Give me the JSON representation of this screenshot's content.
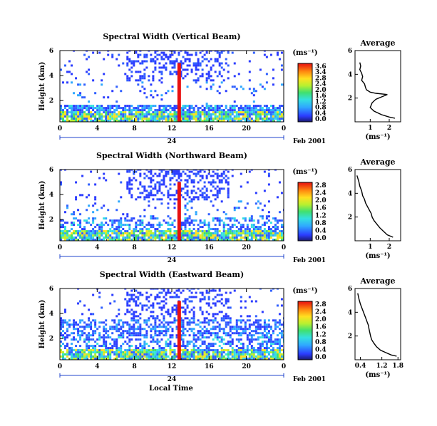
{
  "figure": {
    "xlabel": "Local Time",
    "date_label": "Feb 2001",
    "day_marker": "24",
    "unit_label": "(ms⁻¹)",
    "ylabel": "Height (km)",
    "avg_title": "Average"
  },
  "chart_data": [
    {
      "type": "heatmap",
      "title": "Spectral Width (Vertical Beam)",
      "ylabel": "Height (km)",
      "x_ticks": [
        "0",
        "4",
        "8",
        "12",
        "16",
        "20",
        "0"
      ],
      "y_ticks": [
        "6",
        "4",
        "2"
      ],
      "xlim": [
        0,
        24
      ],
      "ylim": [
        0.3,
        6
      ],
      "colorbar": {
        "ticks": [
          "3.6",
          "3.4",
          "2.8",
          "2.4",
          "2.0",
          "1.6",
          "1.2",
          "0.8",
          "0.4",
          "0.0"
        ],
        "range": [
          0,
          3.6
        ]
      },
      "average_profile": {
        "title": "Average",
        "xlabel": "(ms⁻¹)",
        "x_ticks": [
          "1",
          "2"
        ],
        "xlim": [
          0.2,
          2.6
        ],
        "y_ticks": [
          "6",
          "4",
          "2"
        ],
        "ylim": [
          0,
          6
        ],
        "width": [
          0.45,
          0.5,
          0.45,
          0.55,
          0.6,
          0.55,
          0.7,
          0.75,
          0.8,
          1.0,
          1.3,
          1.9,
          1.6,
          1.3,
          1.1,
          1.0,
          1.2,
          1.6,
          2.0,
          2.3
        ],
        "height": [
          5.0,
          4.7,
          4.4,
          4.1,
          3.8,
          3.5,
          3.2,
          2.9,
          2.7,
          2.5,
          2.4,
          2.3,
          2.1,
          1.9,
          1.6,
          1.2,
          0.9,
          0.6,
          0.4,
          0.3
        ]
      }
    },
    {
      "type": "heatmap",
      "title": "Spectral Width (Northward Beam)",
      "ylabel": "Height (km)",
      "x_ticks": [
        "0",
        "4",
        "8",
        "12",
        "16",
        "20",
        "0"
      ],
      "y_ticks": [
        "6",
        "4",
        "2"
      ],
      "xlim": [
        0,
        24
      ],
      "ylim": [
        0.3,
        6
      ],
      "colorbar": {
        "ticks": [
          "2.8",
          "2.4",
          "2.0",
          "1.6",
          "1.2",
          "0.8",
          "0.4",
          "0.0"
        ],
        "range": [
          0,
          2.8
        ]
      },
      "average_profile": {
        "title": "Average",
        "xlabel": "(ms⁻¹)",
        "x_ticks": [
          "1",
          "2"
        ],
        "xlim": [
          0.2,
          2.6
        ],
        "y_ticks": [
          "6",
          "4",
          "2"
        ],
        "ylim": [
          0,
          6
        ],
        "width": [
          0.3,
          0.4,
          0.45,
          0.55,
          0.6,
          0.7,
          0.75,
          0.85,
          0.95,
          1.05,
          1.1,
          1.2,
          1.35,
          1.5,
          1.7,
          1.9,
          2.2
        ],
        "height": [
          5.5,
          5.0,
          4.6,
          4.2,
          3.8,
          3.5,
          3.2,
          2.9,
          2.6,
          2.3,
          2.0,
          1.7,
          1.4,
          1.1,
          0.8,
          0.5,
          0.3
        ]
      }
    },
    {
      "type": "heatmap",
      "title": "Spectral Width (Eastward Beam)",
      "ylabel": "Height (km)",
      "x_ticks": [
        "0",
        "4",
        "8",
        "12",
        "16",
        "20",
        "0"
      ],
      "y_ticks": [
        "6",
        "4",
        "2"
      ],
      "xlim": [
        0,
        24
      ],
      "ylim": [
        0.3,
        6
      ],
      "colorbar": {
        "ticks": [
          "2.8",
          "2.4",
          "2.0",
          "1.6",
          "1.2",
          "0.8",
          "0.4",
          "0.0"
        ],
        "range": [
          0,
          2.8
        ]
      },
      "average_profile": {
        "title": "Average",
        "xlabel": "(ms⁻¹)",
        "x_ticks": [
          "0.4",
          "1.2",
          "1.8"
        ],
        "xlim": [
          0.2,
          1.9
        ],
        "y_ticks": [
          "6",
          "4",
          "2"
        ],
        "ylim": [
          0,
          6
        ],
        "width": [
          0.3,
          0.35,
          0.4,
          0.45,
          0.5,
          0.55,
          0.6,
          0.65,
          0.7,
          0.72,
          0.75,
          0.78,
          0.82,
          0.9,
          1.0,
          1.15,
          1.35,
          1.55,
          1.75
        ],
        "height": [
          5.6,
          5.1,
          4.7,
          4.4,
          4.1,
          3.8,
          3.5,
          3.2,
          2.9,
          2.6,
          2.3,
          2.0,
          1.7,
          1.4,
          1.1,
          0.8,
          0.6,
          0.4,
          0.3
        ]
      }
    }
  ]
}
